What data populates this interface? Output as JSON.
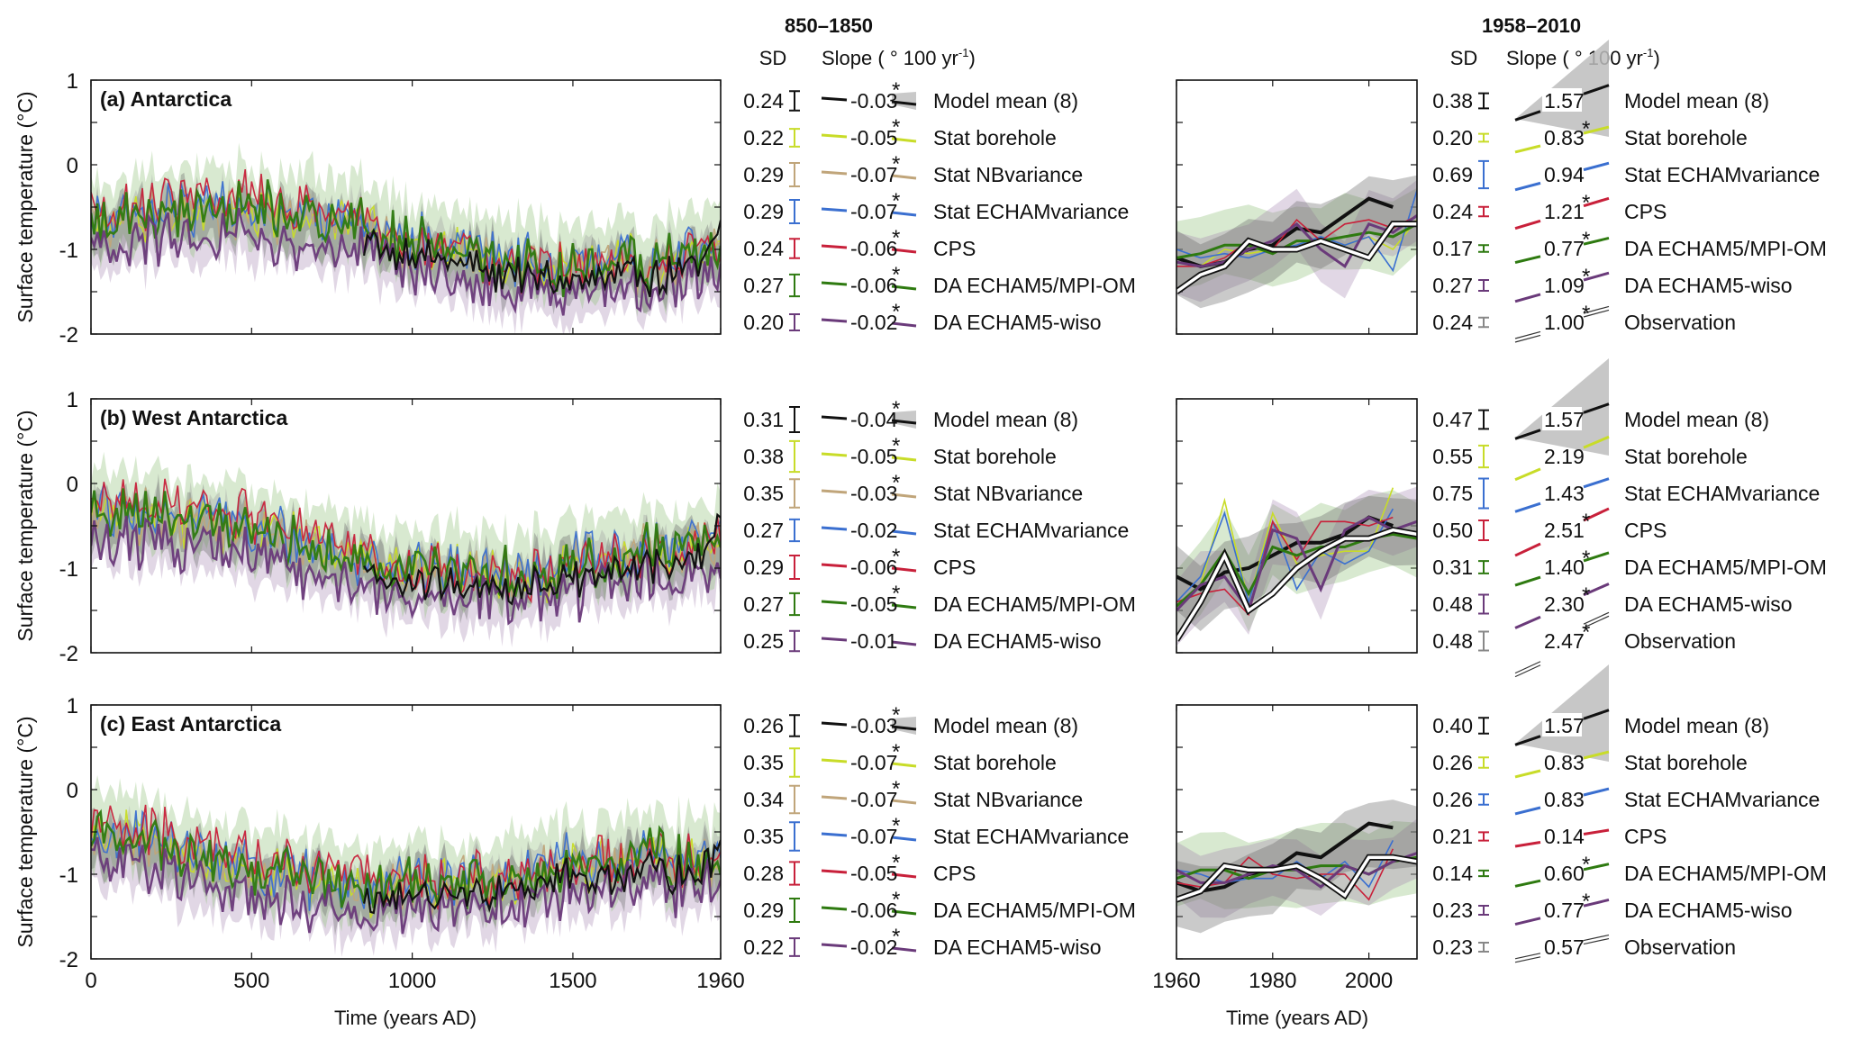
{
  "chart_data": {
    "type": "line",
    "ylabel": "Surface temperature (°C)",
    "left_xlabel": "Time (years AD)",
    "right_xlabel": "Time (years AD)",
    "left_xlim": [
      0,
      1960
    ],
    "left_xticks": [
      "0",
      "500",
      "1000",
      "1500",
      "1960"
    ],
    "left_xtick_values": [
      0,
      500,
      1000,
      1500,
      1960
    ],
    "right_xlim": [
      1960,
      2010
    ],
    "right_xticks": [
      "1960",
      "1980",
      "2000"
    ],
    "right_xtick_values": [
      1960,
      1980,
      2000
    ],
    "ylim": [
      -2,
      1
    ],
    "yticks": [
      "1",
      "0",
      "-1",
      "-2"
    ],
    "ytick_values": [
      1,
      0,
      -1,
      -2
    ],
    "period_left": "850–1850",
    "period_right": "1958–2010",
    "sd_header": "SD",
    "slope_header": "Slope ( ° 100 yr",
    "slope_header_sup": "-1",
    "slope_header_close": ")",
    "significance_marker": "*",
    "series_colors": {
      "Model mean (8)": "#111111",
      "Stat borehole": "#c8dc28",
      "Stat NBvariance": "#c0a57a",
      "Stat ECHAMvariance": "#3a6fd0",
      "CPS": "#c8203a",
      "DA ECHAM5/MPI-OM": "#2e7a10",
      "DA ECHAM5-wiso": "#6a3a7a",
      "Observation": "#888888"
    },
    "panels": [
      {
        "title": "(a) Antarctica",
        "legend_left": [
          {
            "name": "Model mean (8)",
            "sd": "0.24",
            "slope": "-0.03",
            "sig": true
          },
          {
            "name": "Stat borehole",
            "sd": "0.22",
            "slope": "-0.05",
            "sig": true
          },
          {
            "name": "Stat NBvariance",
            "sd": "0.29",
            "slope": "-0.07",
            "sig": true
          },
          {
            "name": "Stat ECHAMvariance",
            "sd": "0.29",
            "slope": "-0.07",
            "sig": true
          },
          {
            "name": "CPS",
            "sd": "0.24",
            "slope": "-0.06",
            "sig": true
          },
          {
            "name": "DA ECHAM5/MPI-OM",
            "sd": "0.27",
            "slope": "-0.06",
            "sig": true
          },
          {
            "name": "DA ECHAM5-wiso",
            "sd": "0.20",
            "slope": "-0.02",
            "sig": true
          }
        ],
        "legend_right": [
          {
            "name": "Model mean (8)",
            "sd": "0.38",
            "slope": "1.57",
            "sig": false
          },
          {
            "name": "Stat borehole",
            "sd": "0.20",
            "slope": "0.83",
            "sig": true
          },
          {
            "name": "Stat ECHAMvariance",
            "sd": "0.69",
            "slope": "0.94",
            "sig": false
          },
          {
            "name": "CPS",
            "sd": "0.24",
            "slope": "1.21",
            "sig": true
          },
          {
            "name": "DA ECHAM5/MPI-OM",
            "sd": "0.17",
            "slope": "0.77",
            "sig": true
          },
          {
            "name": "DA ECHAM5-wiso",
            "sd": "0.27",
            "slope": "1.09",
            "sig": true
          },
          {
            "name": "Observation",
            "sd": "0.24",
            "slope": "1.00",
            "sig": true
          }
        ],
        "left_mean_level": -0.75,
        "recent": {
          "years": [
            1960,
            1965,
            1970,
            1975,
            1980,
            1985,
            1990,
            1995,
            2000,
            2005,
            2010
          ],
          "Model mean (8)": [
            -1.1,
            -1.2,
            -1.15,
            -1.0,
            -0.95,
            -0.75,
            -0.8,
            -0.6,
            -0.4,
            -0.5,
            null
          ],
          "Stat borehole": [
            -1.15,
            -1.2,
            -1.0,
            -1.05,
            -1.0,
            -0.95,
            -0.9,
            -0.95,
            -0.85,
            -1.0,
            -0.65
          ],
          "Stat ECHAMvariance": [
            -1.0,
            -1.1,
            -1.05,
            -1.1,
            -1.0,
            -0.95,
            -0.85,
            -0.95,
            -0.85,
            -1.25,
            -0.3
          ],
          "CPS": [
            -1.2,
            -1.2,
            -1.1,
            -0.9,
            -1.0,
            -0.65,
            -0.9,
            -0.7,
            -0.65,
            -0.75,
            -0.6
          ],
          "DA ECHAM5/MPI-OM": [
            -1.1,
            -1.05,
            -0.95,
            -0.95,
            -1.05,
            -0.9,
            -0.9,
            -0.85,
            -0.8,
            -0.85,
            -0.7
          ],
          "DA ECHAM5-wiso": [
            -1.15,
            -1.2,
            -1.15,
            -1.0,
            -0.9,
            -0.7,
            -1.0,
            -1.2,
            -0.7,
            -0.8,
            -0.6
          ],
          "Observation": [
            -1.5,
            -1.3,
            -1.2,
            -0.9,
            -1.0,
            -1.0,
            -0.9,
            -1.0,
            -1.1,
            -0.7,
            -0.7
          ]
        }
      },
      {
        "title": "(b) West Antarctica",
        "legend_left": [
          {
            "name": "Model mean (8)",
            "sd": "0.31",
            "slope": "-0.04",
            "sig": true
          },
          {
            "name": "Stat borehole",
            "sd": "0.38",
            "slope": "-0.05",
            "sig": true
          },
          {
            "name": "Stat NBvariance",
            "sd": "0.35",
            "slope": "-0.03",
            "sig": true
          },
          {
            "name": "Stat ECHAMvariance",
            "sd": "0.27",
            "slope": "-0.02",
            "sig": false
          },
          {
            "name": "CPS",
            "sd": "0.29",
            "slope": "-0.06",
            "sig": true
          },
          {
            "name": "DA ECHAM5/MPI-OM",
            "sd": "0.27",
            "slope": "-0.05",
            "sig": true
          },
          {
            "name": "DA ECHAM5-wiso",
            "sd": "0.25",
            "slope": "-0.01",
            "sig": false
          }
        ],
        "legend_right": [
          {
            "name": "Model mean (8)",
            "sd": "0.47",
            "slope": "1.57",
            "sig": false
          },
          {
            "name": "Stat borehole",
            "sd": "0.55",
            "slope": "2.19",
            "sig": false
          },
          {
            "name": "Stat ECHAMvariance",
            "sd": "0.75",
            "slope": "1.43",
            "sig": false
          },
          {
            "name": "CPS",
            "sd": "0.50",
            "slope": "2.51",
            "sig": true
          },
          {
            "name": "DA ECHAM5/MPI-OM",
            "sd": "0.31",
            "slope": "1.40",
            "sig": true
          },
          {
            "name": "DA ECHAM5-wiso",
            "sd": "0.48",
            "slope": "2.30",
            "sig": true
          },
          {
            "name": "Observation",
            "sd": "0.48",
            "slope": "2.47",
            "sig": true
          }
        ],
        "left_mean_level": -0.65,
        "recent": {
          "years": [
            1960,
            1965,
            1970,
            1975,
            1980,
            1985,
            1990,
            1995,
            2000,
            2005,
            2010
          ],
          "Model mean (8)": [
            -1.1,
            -1.25,
            -1.05,
            -1.0,
            -0.85,
            -0.7,
            -0.7,
            -0.6,
            -0.4,
            -0.5,
            null
          ],
          "Stat borehole": [
            -1.5,
            -1.2,
            -0.2,
            -1.4,
            -0.35,
            -0.95,
            -0.85,
            -0.8,
            -0.8,
            -0.05,
            null
          ],
          "Stat ECHAMvariance": [
            -1.4,
            -1.1,
            -0.35,
            -1.4,
            -0.45,
            -1.25,
            -0.8,
            -0.95,
            -0.8,
            -0.3,
            null
          ],
          "CPS": [
            -1.4,
            -1.3,
            -1.25,
            -1.55,
            -0.45,
            -0.9,
            -0.45,
            -0.45,
            -0.5,
            -0.4,
            null
          ],
          "DA ECHAM5/MPI-OM": [
            -1.45,
            -1.2,
            -0.8,
            -1.3,
            -0.75,
            -0.85,
            -0.75,
            -0.75,
            -0.65,
            -0.6,
            -0.65
          ],
          "DA ECHAM5-wiso": [
            -1.5,
            -1.2,
            -1.1,
            -1.5,
            -0.55,
            -0.65,
            -1.25,
            -0.55,
            -0.4,
            -0.55,
            -0.45
          ],
          "Observation": [
            -1.85,
            -1.4,
            -0.85,
            -1.5,
            -1.3,
            -1.0,
            -0.8,
            -0.65,
            -0.65,
            -0.55,
            -0.6
          ]
        }
      },
      {
        "title": "(c) East Antarctica",
        "legend_left": [
          {
            "name": "Model mean (8)",
            "sd": "0.26",
            "slope": "-0.03",
            "sig": true
          },
          {
            "name": "Stat borehole",
            "sd": "0.35",
            "slope": "-0.07",
            "sig": true
          },
          {
            "name": "Stat NBvariance",
            "sd": "0.34",
            "slope": "-0.07",
            "sig": true
          },
          {
            "name": "Stat ECHAMvariance",
            "sd": "0.35",
            "slope": "-0.07",
            "sig": true
          },
          {
            "name": "CPS",
            "sd": "0.28",
            "slope": "-0.05",
            "sig": true
          },
          {
            "name": "DA ECHAM5/MPI-OM",
            "sd": "0.29",
            "slope": "-0.06",
            "sig": true
          },
          {
            "name": "DA ECHAM5-wiso",
            "sd": "0.22",
            "slope": "-0.02",
            "sig": true
          }
        ],
        "legend_right": [
          {
            "name": "Model mean (8)",
            "sd": "0.40",
            "slope": "1.57",
            "sig": false
          },
          {
            "name": "Stat borehole",
            "sd": "0.26",
            "slope": "0.83",
            "sig": false
          },
          {
            "name": "Stat ECHAMvariance",
            "sd": "0.26",
            "slope": "0.83",
            "sig": false
          },
          {
            "name": "CPS",
            "sd": "0.21",
            "slope": "0.14",
            "sig": false
          },
          {
            "name": "DA ECHAM5/MPI-OM",
            "sd": "0.14",
            "slope": "0.60",
            "sig": true
          },
          {
            "name": "DA ECHAM5-wiso",
            "sd": "0.23",
            "slope": "0.77",
            "sig": true
          },
          {
            "name": "Observation",
            "sd": "0.23",
            "slope": "0.57",
            "sig": false
          }
        ],
        "left_mean_level": -0.8,
        "recent": {
          "years": [
            1960,
            1965,
            1970,
            1975,
            1980,
            1985,
            1990,
            1995,
            2000,
            2005,
            2010
          ],
          "Model mean (8)": [
            -1.1,
            -1.2,
            -1.15,
            -1.0,
            -0.95,
            -0.75,
            -0.8,
            -0.6,
            -0.4,
            -0.45,
            null
          ],
          "Stat ECHAMvariance": [
            -0.95,
            -1.0,
            -1.1,
            -1.05,
            -1.05,
            -0.85,
            -1.05,
            -0.85,
            -1.15,
            -0.6,
            null
          ],
          "CPS": [
            -1.1,
            -1.15,
            -1.1,
            -0.8,
            -1.0,
            -1.05,
            -1.0,
            -1.0,
            -1.3,
            -0.7,
            null
          ],
          "DA ECHAM5/MPI-OM": [
            -1.05,
            -0.95,
            -0.95,
            -1.05,
            -0.95,
            -0.95,
            -0.9,
            -0.9,
            -1.0,
            -0.85,
            -0.8
          ],
          "DA ECHAM5-wiso": [
            -0.95,
            -1.1,
            -1.1,
            -1.0,
            -0.9,
            -0.95,
            -1.15,
            -0.9,
            -1.0,
            -0.85,
            -0.75
          ],
          "Observation": [
            -1.3,
            -1.2,
            -0.9,
            -0.95,
            -0.95,
            -0.9,
            -1.05,
            -1.25,
            -0.8,
            -0.8,
            -0.85
          ]
        }
      }
    ]
  }
}
